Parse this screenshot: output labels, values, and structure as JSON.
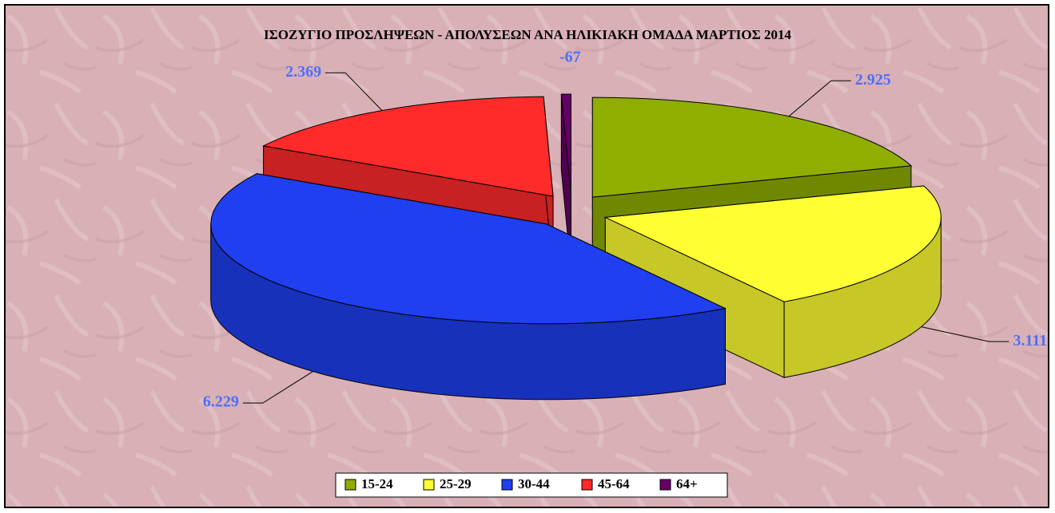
{
  "chart_data": {
    "type": "pie",
    "title": "ΙΣΟΖΥΓΙΟ ΠΡΟΣΛΗΨΕΩΝ - ΑΠΟΛΥΣΕΩΝ ΑΝΑ ΗΛΙΚΙΑΚΗ ΟΜΑΔΑ ΜΑΡΤΙΟΣ  2014",
    "categories": [
      "15-24",
      "25-29",
      "30-44",
      "45-64",
      "64+"
    ],
    "values": [
      2925,
      3111,
      6229,
      2369,
      -67
    ],
    "value_labels": [
      "2.925",
      "3.111",
      "6.229",
      "2.369",
      "-67"
    ],
    "colors": [
      "#8fae00",
      "#ffff33",
      "#1f3ff0",
      "#ff2a2a",
      "#660066"
    ],
    "legend": "bottom"
  }
}
